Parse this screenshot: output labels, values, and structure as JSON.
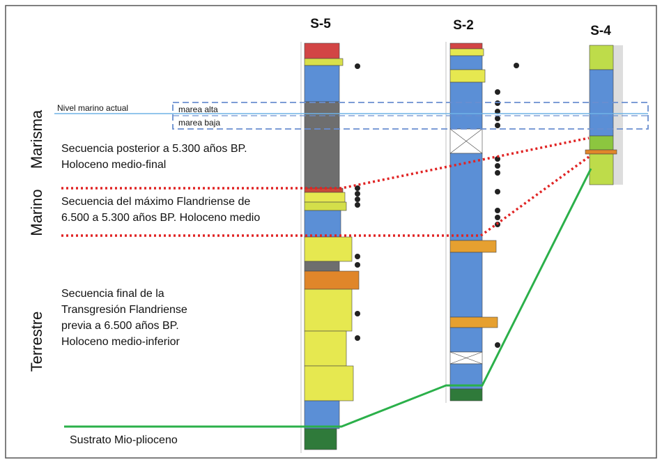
{
  "columns": [
    "S-5",
    "S-2",
    "S-4"
  ],
  "zones": [
    "Marisma",
    "Marino",
    "Terrestre"
  ],
  "sea_level": {
    "label": "Nivel marino  actual",
    "high_tide": "marea alta",
    "low_tide": "marea baja"
  },
  "sequences": [
    [
      "Secuencia  posterior a 5.300 años BP.",
      "Holoceno  medio-final"
    ],
    [
      "Secuencia del máximo Flandriense de",
      "6.500 a 5.300 años BP. Holoceno medio"
    ],
    [
      "Secuencia final de la",
      "Transgresión Flandriense",
      "previa a 6.500 años BP.",
      "Holoceno medio-inferior"
    ]
  ],
  "substrate": "Sustrato Mio-plioceno"
}
